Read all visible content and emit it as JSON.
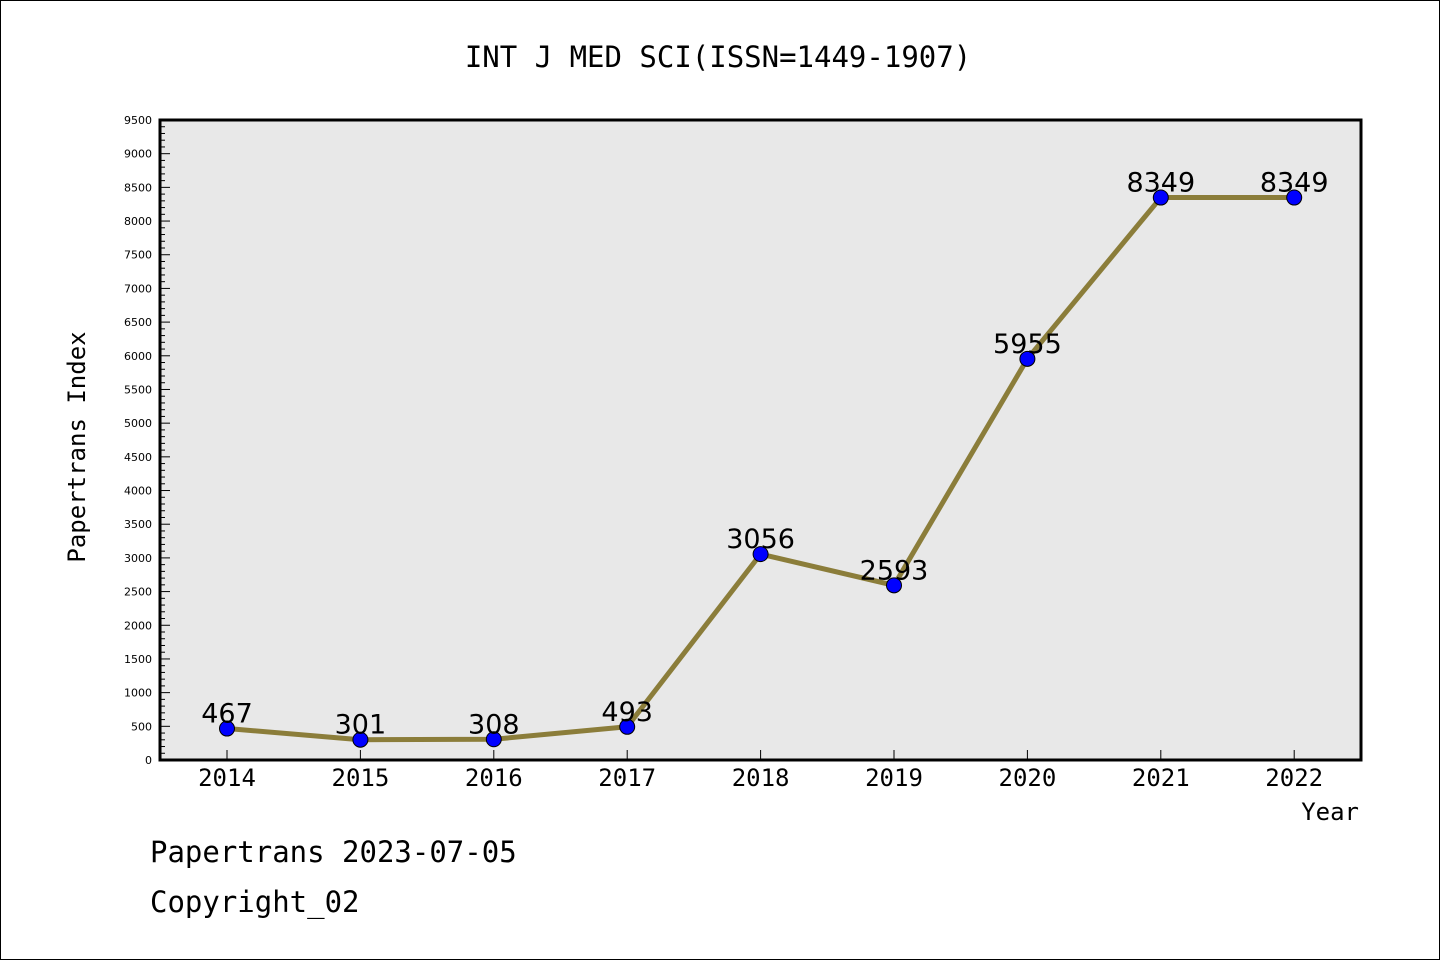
{
  "chart_data": {
    "type": "line",
    "title": "INT J MED SCI(ISSN=1449-1907)",
    "xlabel": "Year",
    "ylabel": "Papertrans Index",
    "categories": [
      "2014",
      "2015",
      "2016",
      "2017",
      "2018",
      "2019",
      "2020",
      "2021",
      "2022"
    ],
    "series": [
      {
        "values": [
          467,
          301,
          308,
          493,
          3056,
          2593,
          5955,
          8349,
          8349
        ]
      }
    ],
    "data_labels": [
      "467",
      "301",
      "308",
      "493",
      "3056",
      "2593",
      "5955",
      "8349",
      "8349"
    ],
    "ylim": [
      0,
      9500
    ],
    "ytick_step": 500,
    "yticks": [
      "0",
      "500",
      "1000",
      "1500",
      "2000",
      "2500",
      "3000",
      "3500",
      "4000",
      "4500",
      "5000",
      "5500",
      "6000",
      "6500",
      "7000",
      "7500",
      "8000",
      "8500",
      "9000",
      "9500"
    ],
    "grid": false,
    "legend": "none",
    "colors": {
      "line": "#8b7d3a",
      "marker": "#0000ff",
      "plot_background": "#e8e8e8"
    }
  },
  "footer": {
    "line1": "Papertrans 2023-07-05",
    "line2": "Copyright_02"
  }
}
